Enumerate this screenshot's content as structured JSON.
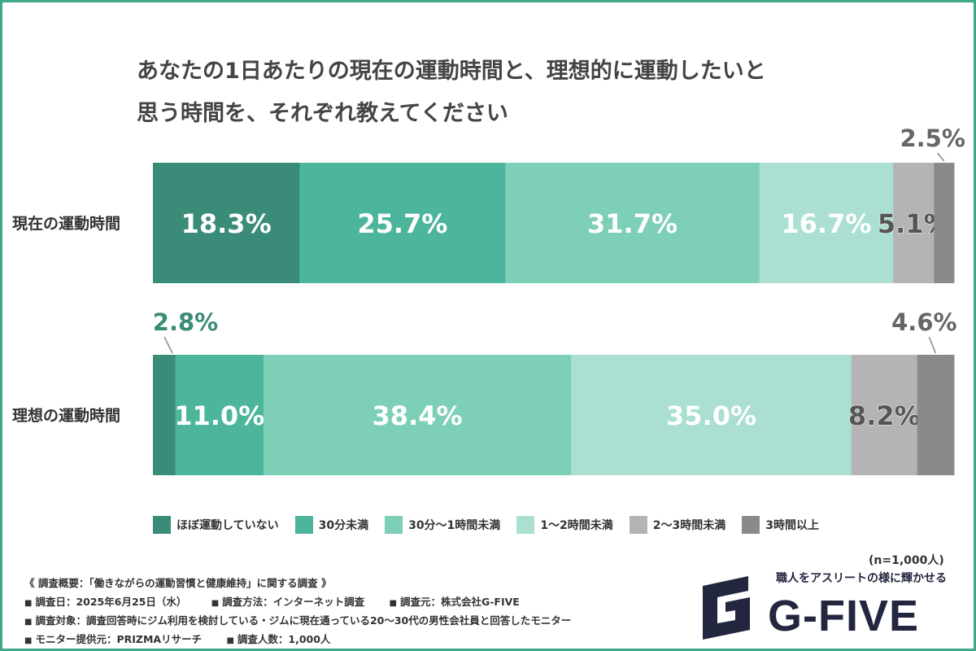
{
  "title_lines": [
    "あなたの1日あたりの現在の運動時間と、理想的に運動したいと",
    "思う時間を、それぞれ教えてください"
  ],
  "chart_data": {
    "type": "bar",
    "orientation": "horizontal",
    "stacked": true,
    "percent_stacked": true,
    "title": "あなたの1日あたりの現在の運動時間と、理想的に運動したいと思う時間を、それぞれ教えてください",
    "categories": [
      "現在の運動時間",
      "理想の運動時間"
    ],
    "series": [
      {
        "name": "ほぼ運動していない",
        "values": [
          18.3,
          2.8
        ],
        "color": "#3a8b78"
      },
      {
        "name": "30分未満",
        "values": [
          25.7,
          11.0
        ],
        "color": "#4db59b"
      },
      {
        "name": "30分〜1時間未満",
        "values": [
          31.7,
          38.4
        ],
        "color": "#7ecfb8"
      },
      {
        "name": "1〜2時間未満",
        "values": [
          16.7,
          35.0
        ],
        "color": "#aadfd2"
      },
      {
        "name": "2〜3時間未満",
        "values": [
          5.1,
          8.2
        ],
        "color": "#b5b3b6"
      },
      {
        "name": "3時間以上",
        "values": [
          2.5,
          4.6
        ],
        "color": "#8a898c"
      }
    ],
    "labels": [
      [
        "18.3%",
        "25.7%",
        "31.7%",
        "16.7%",
        "5.1%",
        "2.5%"
      ],
      [
        "2.8%",
        "11.0%",
        "38.4%",
        "35.0%",
        "8.2%",
        "4.6%"
      ]
    ],
    "xlim": [
      0,
      100
    ],
    "legend_position": "bottom",
    "grid": false
  },
  "legend": [
    "ほぼ運動していない",
    "30分未満",
    "30分〜1時間未満",
    "1〜2時間未満",
    "2〜3時間未満",
    "3時間以上"
  ],
  "sample_size": "(n=1,000人)",
  "overview": {
    "heading": "《 調査概要：「働きながらの運動習慣と健康維持」に関する調査 》",
    "lines": [
      [
        "調査日：2025年6月25日（水）",
        "調査方法：インターネット調査",
        "調査元：株式会社G-FIVE"
      ],
      [
        "調査対象：調査回答時にジム利用を検討している・ジムに現在通っている20〜30代の男性会社員と回答したモニター"
      ],
      [
        "モニター提供元：PRIZMAリサーチ",
        "調査人数：1,000人"
      ]
    ]
  },
  "logo": {
    "tagline": "職人をアスリートの様に輝かせる",
    "name": "G-FIVE",
    "mark_icon": "g-five-logo-mark-icon",
    "color": "#23263f"
  },
  "colors": {
    "frame": "#3fa88a",
    "title_text": "#444444",
    "outside_label_dark": "#666666",
    "outside_label_green": "#3a8b78"
  }
}
